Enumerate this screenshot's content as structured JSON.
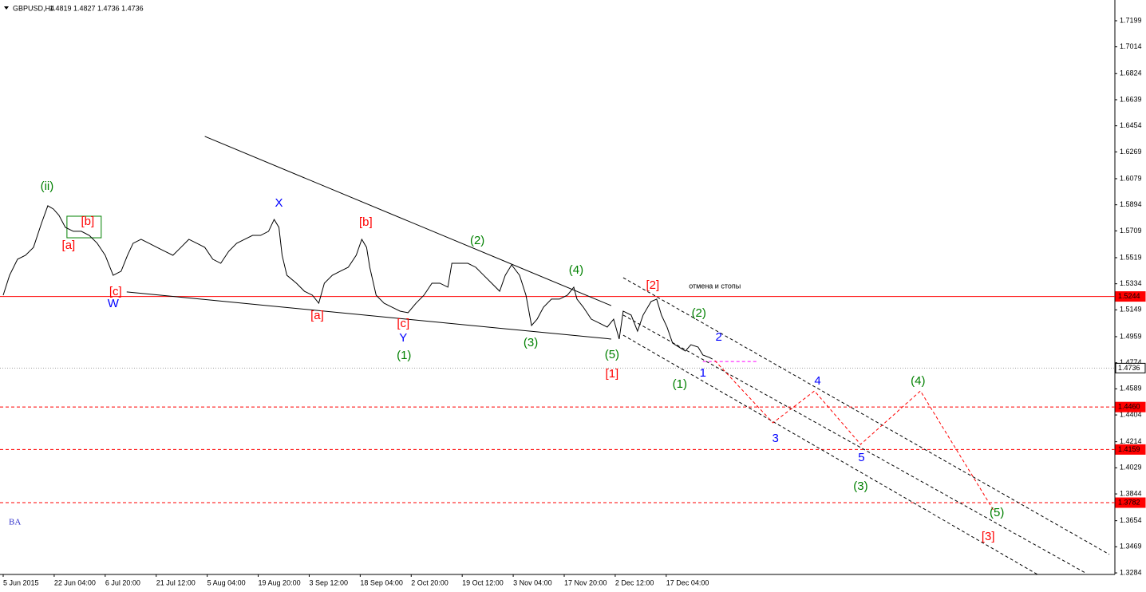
{
  "chart_data": {
    "type": "line",
    "symbol": "GBPUSD,H4",
    "ohlc": "1.4819 1.4827 1.4736 1.4736",
    "watermark": "BA",
    "xlim": [
      -0.5,
      348.75
    ],
    "ylim": [
      1.3273,
      1.7346
    ],
    "xticks": [
      {
        "value": 0,
        "label": "5 Jun 2015"
      },
      {
        "value": 16,
        "label": "22 Jun 04:00"
      },
      {
        "value": 32,
        "label": "6 Jul 20:00"
      },
      {
        "value": 48,
        "label": "21 Jul 12:00"
      },
      {
        "value": 64,
        "label": "5 Aug 04:00"
      },
      {
        "value": 80,
        "label": "19 Aug 20:00"
      },
      {
        "value": 96,
        "label": "3 Sep 12:00"
      },
      {
        "value": 112,
        "label": "18 Sep 04:00"
      },
      {
        "value": 128,
        "label": "2 Oct 20:00"
      },
      {
        "value": 144,
        "label": "19 Oct 12:00"
      },
      {
        "value": 160,
        "label": "3 Nov 04:00"
      },
      {
        "value": 176,
        "label": "17 Nov 20:00"
      },
      {
        "value": 192,
        "label": "2 Dec 12:00"
      },
      {
        "value": 208,
        "label": "17 Dec 04:00"
      }
    ],
    "yticks": [
      1.7199,
      1.7014,
      1.6824,
      1.6639,
      1.6454,
      1.6269,
      1.6079,
      1.5894,
      1.5709,
      1.5519,
      1.5334,
      1.5149,
      1.4959,
      1.4774,
      1.4589,
      1.4404,
      1.4214,
      1.4029,
      1.3844,
      1.3654,
      1.3469,
      1.3284
    ],
    "series": [
      {
        "color": "#000000",
        "x": [
          0,
          2,
          4.5,
          7,
          9.5,
          12,
          14,
          15.75,
          17.5,
          19.5,
          22,
          24.5,
          27,
          29.5,
          32,
          34.5,
          37,
          39,
          40.75,
          43.25,
          45.75,
          48.25,
          50.75,
          53.25,
          55.75,
          58.25,
          60.75,
          63.25,
          65.75,
          68.25,
          70.75,
          73.25,
          75.75,
          78.25,
          80.75,
          83.25,
          85,
          86.5,
          87.5,
          89,
          92,
          94.5,
          97,
          99,
          100.75,
          103.25,
          105.75,
          108.25,
          110.75,
          112.5,
          114,
          115,
          117,
          119.5,
          122,
          124.5,
          127,
          129.5,
          132,
          134.5,
          137,
          139.5,
          140.75,
          143.25,
          145.75,
          148.25,
          150.75,
          153.25,
          155.75,
          157.5,
          159.5,
          162,
          164,
          165.75,
          167.5,
          169.5,
          172,
          174.5,
          177,
          179,
          180,
          182,
          184.5,
          187,
          189.5,
          191.5,
          193.25,
          194.5,
          197,
          199,
          200.75,
          203.25,
          205,
          206.5,
          208.25,
          210,
          212,
          214,
          215.75,
          218,
          219.5,
          221.5,
          222.5
        ],
        "values": [
          1.5253,
          1.5394,
          1.5508,
          1.5536,
          1.5592,
          1.5762,
          1.5887,
          1.5864,
          1.5819,
          1.5734,
          1.5706,
          1.5706,
          1.5677,
          1.5621,
          1.5536,
          1.5394,
          1.5423,
          1.5536,
          1.5621,
          1.5649,
          1.5621,
          1.5592,
          1.5564,
          1.5536,
          1.5592,
          1.5649,
          1.5621,
          1.5592,
          1.5508,
          1.5479,
          1.5564,
          1.5621,
          1.5649,
          1.5677,
          1.5677,
          1.5706,
          1.579,
          1.5734,
          1.5536,
          1.5394,
          1.5338,
          1.5281,
          1.5253,
          1.5196,
          1.5338,
          1.5394,
          1.5423,
          1.5451,
          1.5536,
          1.5649,
          1.5592,
          1.5451,
          1.5253,
          1.5196,
          1.5168,
          1.514,
          1.5129,
          1.5196,
          1.5253,
          1.5338,
          1.5338,
          1.531,
          1.5479,
          1.5479,
          1.5479,
          1.5451,
          1.5394,
          1.5338,
          1.5281,
          1.5394,
          1.5468,
          1.5394,
          1.5253,
          1.5038,
          1.5083,
          1.5168,
          1.5225,
          1.5225,
          1.5253,
          1.531,
          1.5225,
          1.5168,
          1.5083,
          1.5055,
          1.5027,
          1.5083,
          1.4942,
          1.514,
          1.5112,
          1.4998,
          1.5112,
          1.5208,
          1.5225,
          1.5112,
          1.5027,
          1.4913,
          1.4885,
          1.4857,
          1.4902,
          1.4885,
          1.4829,
          1.4812,
          1.48
        ]
      }
    ],
    "levels": [
      {
        "value": 1.5244,
        "color": "#ff0000",
        "style": "solid"
      },
      {
        "value": 1.4736,
        "color": "#a0a0a0",
        "style": "dotted"
      },
      {
        "value": 1.446,
        "label": "1.4460",
        "color": "#ff0000",
        "style": "dashed"
      },
      {
        "value": 1.4159,
        "color": "#ff0000",
        "style": "dashed"
      },
      {
        "value": 1.3782,
        "color": "#ff0000",
        "style": "dashed"
      }
    ],
    "lines": [
      {
        "color": "#000000",
        "style": "solid",
        "x": [
          63.25,
          190.75
        ],
        "y": [
          1.6379,
          1.5179
        ]
      },
      {
        "color": "#000000",
        "style": "solid",
        "x": [
          38.75,
          190.75
        ],
        "y": [
          1.5276,
          1.4942
        ]
      },
      {
        "color": "#000000",
        "style": "dashed",
        "x": [
          194.5,
          347
        ],
        "y": [
          1.5377,
          1.3415
        ]
      },
      {
        "color": "#000000",
        "style": "dashed",
        "x": [
          194.5,
          339.5
        ],
        "y": [
          1.5112,
          1.3284
        ]
      },
      {
        "color": "#000000",
        "style": "dashed",
        "x": [
          194.5,
          324.5
        ],
        "y": [
          1.497,
          1.3273
        ]
      },
      {
        "color": "#ff00ff",
        "style": "dashed",
        "x": [
          219.5,
          237
        ],
        "y": [
          1.4783,
          1.4783
        ]
      },
      {
        "color": "#ff0000",
        "style": "dashed",
        "x": [
          223.25,
          241.5,
          254.5,
          269,
          287.75,
          310.75
        ],
        "y": [
          1.4789,
          1.4348,
          1.4574,
          1.4195,
          1.4574,
          1.3726
        ]
      }
    ],
    "box": {
      "color": "#008000",
      "x": [
        20,
        30.75
      ],
      "y": [
        1.5813,
        1.566
      ]
    },
    "annotations": [
      {
        "text": "(ii)",
        "color": "#008000",
        "x": 13.75,
        "y": 1.6022
      },
      {
        "text": "[b]",
        "color": "#ff0000",
        "x": 26.5,
        "y": 1.5773
      },
      {
        "text": "[a]",
        "color": "#ff0000",
        "x": 20.5,
        "y": 1.5603
      },
      {
        "text": "[c]",
        "color": "#ff0000",
        "x": 35.25,
        "y": 1.5276
      },
      {
        "text": "W",
        "color": "#0000ff",
        "x": 34.5,
        "y": 1.5191
      },
      {
        "text": "X",
        "color": "#0000ff",
        "x": 86.5,
        "y": 1.5904
      },
      {
        "text": "[b]",
        "color": "#ff0000",
        "x": 113.75,
        "y": 1.5768
      },
      {
        "text": "[a]",
        "color": "#ff0000",
        "x": 98.5,
        "y": 1.5106
      },
      {
        "text": "[c]",
        "color": "#ff0000",
        "x": 125.5,
        "y": 1.5049
      },
      {
        "text": "Y",
        "color": "#0000ff",
        "x": 125.5,
        "y": 1.4947
      },
      {
        "text": "(1)",
        "color": "#008000",
        "x": 125.75,
        "y": 1.4823
      },
      {
        "text": "(2)",
        "color": "#008000",
        "x": 148.75,
        "y": 1.5638
      },
      {
        "text": "(3)",
        "color": "#008000",
        "x": 165.5,
        "y": 1.4913
      },
      {
        "text": "(4)",
        "color": "#008000",
        "x": 179.75,
        "y": 1.5428
      },
      {
        "text": "(5)",
        "color": "#008000",
        "x": 191,
        "y": 1.4829
      },
      {
        "text": "[1]",
        "color": "#ff0000",
        "x": 191,
        "y": 1.4693
      },
      {
        "text": "[2]",
        "color": "#ff0000",
        "x": 203.75,
        "y": 1.5321
      },
      {
        "text": "отмена и стопы",
        "color": "#000000",
        "x": 223.25,
        "y": 1.5315
      },
      {
        "text": "(2)",
        "color": "#008000",
        "x": 218.25,
        "y": 1.5123
      },
      {
        "text": "2",
        "color": "#0000ff",
        "x": 224.5,
        "y": 1.4953
      },
      {
        "text": "1",
        "color": "#0000ff",
        "x": 219.5,
        "y": 1.4699
      },
      {
        "text": "(1)",
        "color": "#008000",
        "x": 212.25,
        "y": 1.4619
      },
      {
        "text": "4",
        "color": "#0000ff",
        "x": 255.5,
        "y": 1.4642
      },
      {
        "text": "(4)",
        "color": "#008000",
        "x": 287,
        "y": 1.4642
      },
      {
        "text": "3",
        "color": "#0000ff",
        "x": 242.25,
        "y": 1.4235
      },
      {
        "text": "5",
        "color": "#0000ff",
        "x": 269.25,
        "y": 1.4099
      },
      {
        "text": "(3)",
        "color": "#008000",
        "x": 269,
        "y": 1.3895
      },
      {
        "text": "(5)",
        "color": "#008000",
        "x": 311.75,
        "y": 1.3709
      },
      {
        "text": "[3]",
        "color": "#ff0000",
        "x": 309,
        "y": 1.3539
      }
    ]
  }
}
